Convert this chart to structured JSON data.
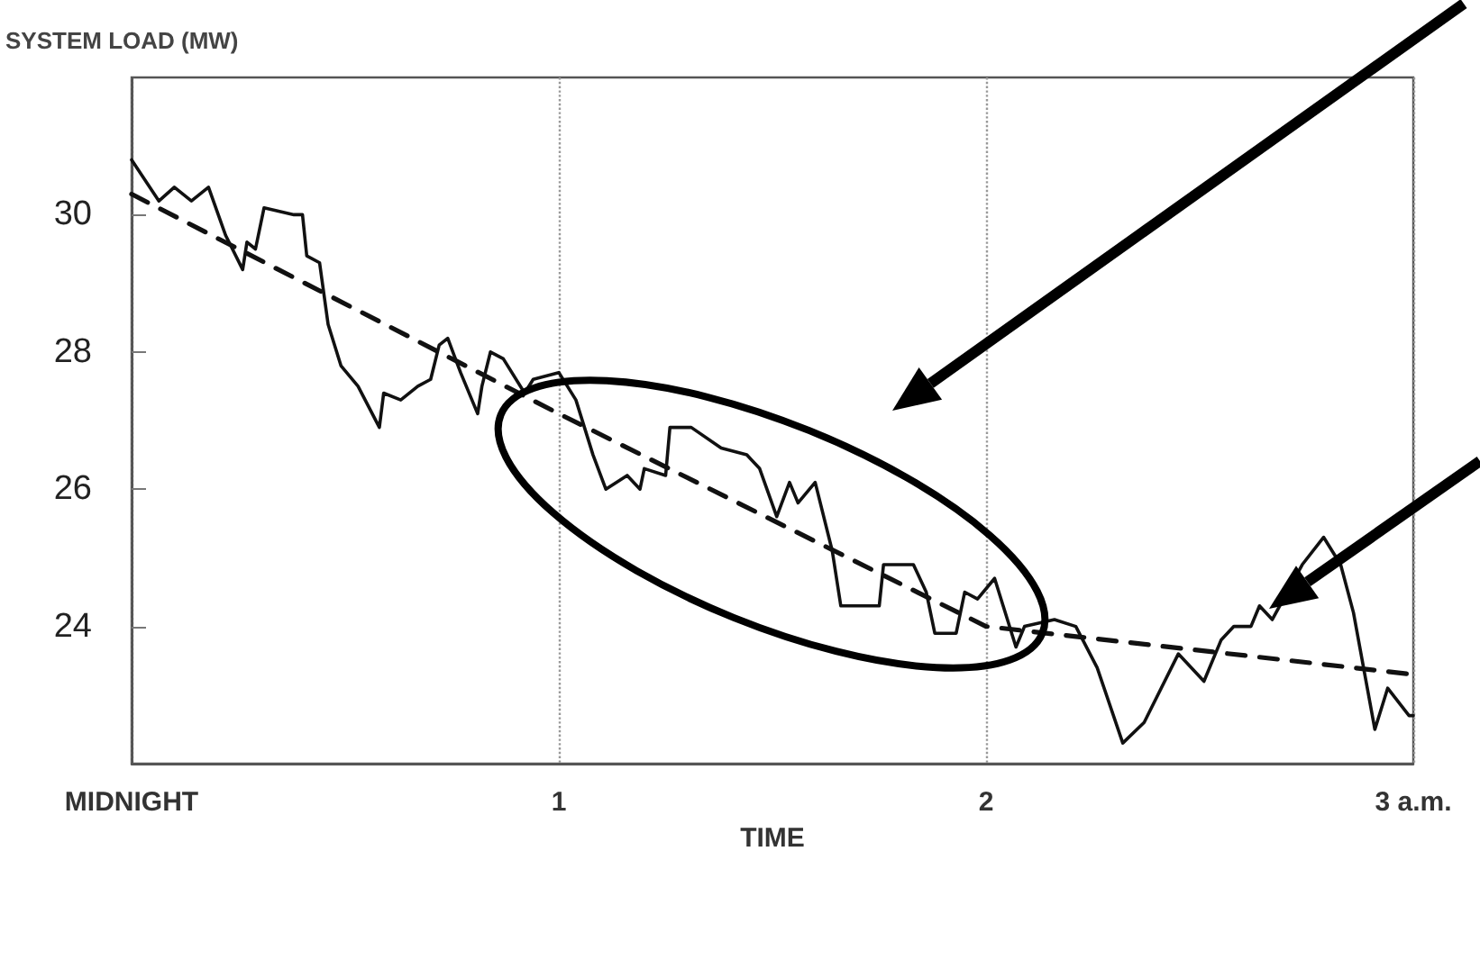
{
  "chart_data": {
    "type": "line",
    "ylabel": "SYSTEM LOAD (MW)",
    "xlabel": "TIME",
    "xlim": [
      0,
      3
    ],
    "ylim": [
      22,
      32
    ],
    "xticks": [
      {
        "value": 0,
        "label": "MIDNIGHT"
      },
      1,
      2,
      {
        "value": 3,
        "label": "3 a.m."
      }
    ],
    "yticks": [
      24,
      26,
      28,
      30
    ],
    "grid": "x",
    "marker": "none",
    "line_style": "solid",
    "series": [
      {
        "color": "#111111",
        "x": [
          0,
          0.064,
          0.1,
          0.14,
          0.18,
          0.22,
          0.26,
          0.27,
          0.29,
          0.31,
          0.38,
          0.4,
          0.41,
          0.44,
          0.46,
          0.49,
          0.53,
          0.58,
          0.59,
          0.63,
          0.67,
          0.7,
          0.72,
          0.74,
          0.77,
          0.81,
          0.82,
          0.84,
          0.87,
          0.92,
          0.94,
          1.0,
          1.04,
          1.08,
          1.11,
          1.16,
          1.19,
          1.2,
          1.25,
          1.26,
          1.31,
          1.38,
          1.44,
          1.47,
          1.51,
          1.54,
          1.56,
          1.6,
          1.64,
          1.66,
          1.75,
          1.76,
          1.83,
          1.86,
          1.88,
          1.93,
          1.95,
          1.98,
          2.02,
          2.04,
          2.07,
          2.09,
          2.16,
          2.21,
          2.26,
          2.32,
          2.37,
          2.45,
          2.51,
          2.55,
          2.58,
          2.62,
          2.64,
          2.67,
          2.74,
          2.79,
          2.83,
          2.86,
          2.91,
          2.94,
          2.99,
          3.0
        ],
        "values": [
          30.8,
          30.2,
          30.4,
          30.2,
          30.4,
          29.7,
          29.2,
          29.6,
          29.5,
          30.1,
          30.0,
          30.0,
          29.4,
          29.3,
          28.4,
          27.8,
          27.5,
          26.9,
          27.4,
          27.3,
          27.5,
          27.6,
          28.1,
          28.2,
          27.7,
          27.1,
          27.5,
          28.0,
          27.9,
          27.4,
          27.6,
          27.7,
          27.3,
          26.5,
          26.0,
          26.2,
          26.0,
          26.3,
          26.2,
          26.9,
          26.9,
          26.6,
          26.5,
          26.3,
          25.6,
          26.1,
          25.8,
          26.1,
          25.1,
          24.3,
          24.3,
          24.9,
          24.9,
          24.5,
          23.9,
          23.9,
          24.5,
          24.4,
          24.7,
          24.3,
          23.7,
          24.0,
          24.1,
          24.0,
          23.4,
          22.3,
          22.6,
          23.6,
          23.2,
          23.8,
          24.0,
          24.0,
          24.3,
          24.1,
          24.9,
          25.3,
          24.9,
          24.2,
          22.5,
          23.1,
          22.7,
          22.7
        ]
      },
      {
        "type": "line",
        "color": "#111111",
        "line_style": "dashed",
        "x": [
          0,
          1,
          2,
          3
        ],
        "values": [
          30.3,
          27.1,
          24.0,
          23.3
        ]
      }
    ]
  }
}
